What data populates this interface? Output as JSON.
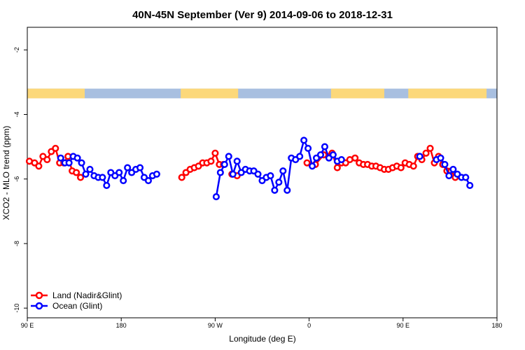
{
  "chart_data": {
    "type": "line",
    "title": "40N-45N September (Ver 9)   2014-09-06 to 2018-12-31",
    "xlabel": "Longitude (deg E)",
    "ylabel": "XCO2 - MLO trend (ppm)",
    "xlim": [
      90,
      540
    ],
    "ylim": [
      -10.3,
      -1.3
    ],
    "x_ticks": [
      {
        "value": 90,
        "label": "90 E"
      },
      {
        "value": 180,
        "label": "180"
      },
      {
        "value": 270,
        "label": "90 W"
      },
      {
        "value": 360,
        "label": "0"
      },
      {
        "value": 450,
        "label": "90 E"
      },
      {
        "value": 540,
        "label": "180"
      }
    ],
    "y_ticks": [
      {
        "value": -2,
        "label": "-2"
      },
      {
        "value": -4,
        "label": "-4"
      },
      {
        "value": -6,
        "label": "-6"
      },
      {
        "value": -8,
        "label": "-8"
      },
      {
        "value": -10,
        "label": "-10"
      }
    ],
    "legend": "bottom-left",
    "land_ocean_strip": {
      "y_range": [
        -3.5,
        -3.2
      ],
      "ocean_color": "#a8bfe0",
      "land_color": "#fcd87a",
      "land_segments": [
        [
          90,
          145
        ],
        [
          237,
          292
        ],
        [
          381,
          432
        ],
        [
          455,
          530
        ]
      ]
    },
    "series": [
      {
        "name": "Land (Nadir&Glint)",
        "color": "#ff0000",
        "segments": [
          [
            [
              92,
              -5.45
            ],
            [
              97,
              -5.5
            ],
            [
              101,
              -5.6
            ],
            [
              105,
              -5.3
            ],
            [
              109,
              -5.4
            ],
            [
              113,
              -5.15
            ],
            [
              117,
              -5.05
            ],
            [
              121,
              -5.5
            ],
            [
              125,
              -5.5
            ],
            [
              129,
              -5.3
            ],
            [
              133,
              -5.75
            ],
            [
              137,
              -5.8
            ],
            [
              141,
              -5.95
            ]
          ],
          [
            [
              238,
              -5.95
            ],
            [
              242,
              -5.8
            ],
            [
              246,
              -5.7
            ],
            [
              250,
              -5.65
            ],
            [
              254,
              -5.6
            ],
            [
              258,
              -5.5
            ],
            [
              262,
              -5.5
            ],
            [
              266,
              -5.45
            ],
            [
              270,
              -5.2
            ],
            [
              274,
              -5.55
            ],
            [
              278,
              -5.55
            ]
          ],
          [
            [
              286,
              -5.85
            ],
            [
              291,
              -5.9
            ]
          ],
          [
            [
              358,
              -5.5
            ],
            [
              366,
              -5.55
            ],
            [
              374,
              -5.25
            ],
            [
              382,
              -5.2
            ],
            [
              387,
              -5.65
            ],
            [
              391,
              -5.5
            ],
            [
              395,
              -5.5
            ],
            [
              399,
              -5.4
            ],
            [
              404,
              -5.35
            ],
            [
              408,
              -5.5
            ],
            [
              412,
              -5.55
            ],
            [
              416,
              -5.55
            ],
            [
              420,
              -5.6
            ],
            [
              424,
              -5.6
            ],
            [
              428,
              -5.65
            ],
            [
              432,
              -5.7
            ],
            [
              436,
              -5.7
            ],
            [
              440,
              -5.65
            ],
            [
              444,
              -5.6
            ],
            [
              448,
              -5.65
            ],
            [
              452,
              -5.5
            ],
            [
              456,
              -5.55
            ],
            [
              460,
              -5.6
            ],
            [
              464,
              -5.3
            ],
            [
              468,
              -5.4
            ],
            [
              472,
              -5.2
            ],
            [
              476,
              -5.05
            ],
            [
              480,
              -5.5
            ],
            [
              484,
              -5.3
            ],
            [
              488,
              -5.55
            ],
            [
              492,
              -5.75
            ],
            [
              496,
              -5.75
            ],
            [
              500,
              -5.95
            ]
          ]
        ]
      },
      {
        "name": "Ocean (Glint)",
        "color": "#0000ff",
        "segments": [
          [
            [
              122,
              -5.35
            ],
            [
              126,
              -5.5
            ],
            [
              130,
              -5.5
            ],
            [
              134,
              -5.3
            ],
            [
              138,
              -5.35
            ],
            [
              142,
              -5.5
            ],
            [
              146,
              -5.85
            ],
            [
              150,
              -5.7
            ],
            [
              154,
              -5.9
            ],
            [
              158,
              -5.95
            ],
            [
              162,
              -5.95
            ],
            [
              166,
              -6.2
            ],
            [
              170,
              -5.8
            ],
            [
              174,
              -5.9
            ],
            [
              178,
              -5.8
            ],
            [
              182,
              -6.05
            ],
            [
              186,
              -5.65
            ],
            [
              190,
              -5.8
            ],
            [
              194,
              -5.7
            ],
            [
              198,
              -5.65
            ],
            [
              202,
              -5.95
            ],
            [
              206,
              -6.05
            ],
            [
              210,
              -5.9
            ],
            [
              214,
              -5.85
            ]
          ],
          [
            [
              271,
              -6.55
            ],
            [
              275,
              -5.8
            ],
            [
              279,
              -5.55
            ],
            [
              283,
              -5.3
            ],
            [
              287,
              -5.85
            ],
            [
              291,
              -5.45
            ],
            [
              295,
              -5.8
            ],
            [
              299,
              -5.7
            ],
            [
              303,
              -5.75
            ],
            [
              307,
              -5.75
            ],
            [
              311,
              -5.85
            ],
            [
              315,
              -6.05
            ],
            [
              319,
              -5.95
            ],
            [
              323,
              -5.9
            ],
            [
              327,
              -6.35
            ],
            [
              331,
              -6.1
            ],
            [
              335,
              -5.75
            ],
            [
              339,
              -6.35
            ],
            [
              343,
              -5.35
            ],
            [
              347,
              -5.4
            ],
            [
              351,
              -5.3
            ],
            [
              355,
              -4.8
            ],
            [
              359,
              -5.05
            ],
            [
              363,
              -5.6
            ],
            [
              367,
              -5.35
            ],
            [
              371,
              -5.25
            ],
            [
              375,
              -5.0
            ],
            [
              379,
              -5.35
            ],
            [
              383,
              -5.25
            ],
            [
              387,
              -5.45
            ],
            [
              391,
              -5.4
            ]
          ],
          [
            [
              466,
              -5.3
            ]
          ],
          [
            [
              482,
              -5.4
            ],
            [
              486,
              -5.35
            ],
            [
              490,
              -5.55
            ],
            [
              494,
              -5.9
            ],
            [
              498,
              -5.7
            ],
            [
              502,
              -5.85
            ],
            [
              506,
              -5.95
            ],
            [
              510,
              -5.95
            ],
            [
              514,
              -6.2
            ]
          ]
        ]
      }
    ]
  }
}
